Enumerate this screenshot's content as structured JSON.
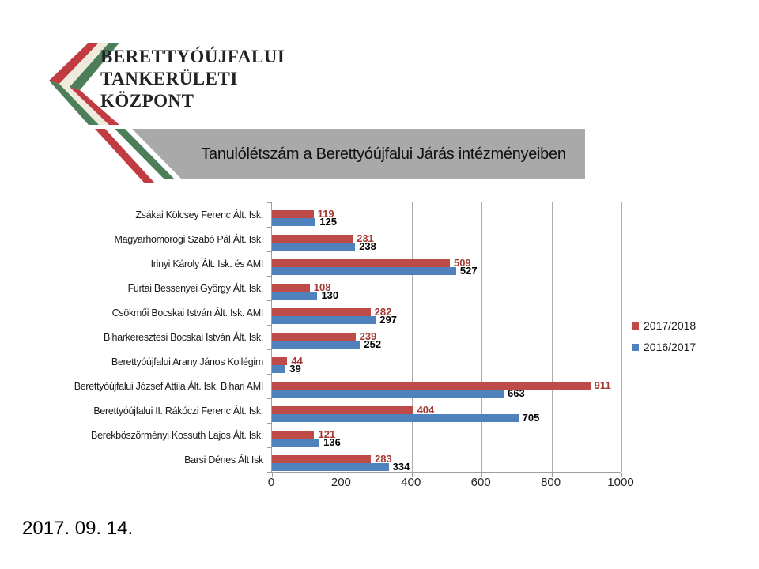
{
  "logo": {
    "line1": "BERETTYÓÚJFALUI",
    "line2": "TANKERÜLETI",
    "line3": "KÖZPONT"
  },
  "title": "Tanulólétszám a Berettyóújfalui Járás intézményeiben",
  "date": "2017. 09. 14.",
  "colors": {
    "banner_bg": "#a9a9a9",
    "flag_red": "#c13b42",
    "flag_cream": "#efebdc",
    "flag_green": "#4d7e5a",
    "series_red": "#be4b48",
    "series_blue": "#4f81bd",
    "red_value_label": "#a43832"
  },
  "chart_data": {
    "type": "bar",
    "orientation": "horizontal",
    "categories": [
      "Zsákai Kölcsey Ferenc Ált. Isk.",
      "Magyarhomorogi Szabó Pál Ált. Isk.",
      "Irinyi Károly Ált. Isk. és AMI",
      "Furtai Bessenyei György Ált. Isk.",
      "Csökmői Bocskai István Ált. Isk. AMI",
      "Biharkeresztesi Bocskai István Ált. Isk.",
      "Berettyóújfalui Arany János Kollégim",
      "Berettyóújfalui József Attila Ált. Isk. Bihari AMI",
      "Berettyóújfalui II. Rákóczi Ferenc Ált. Isk.",
      "Berekböszörményi Kossuth Lajos Ált. Isk.",
      "Barsi Dénes Ált Isk"
    ],
    "series": [
      {
        "name": "2017/2018",
        "color": "#be4b48",
        "label_color": "#a43832",
        "values": [
          119,
          231,
          509,
          108,
          282,
          239,
          44,
          911,
          404,
          121,
          283
        ]
      },
      {
        "name": "2016/2017",
        "color": "#4f81bd",
        "label_color": "#000000",
        "values": [
          125,
          238,
          527,
          130,
          297,
          252,
          39,
          663,
          705,
          136,
          334
        ]
      }
    ],
    "x_ticks": [
      0,
      200,
      400,
      600,
      800,
      1000
    ],
    "xlim": [
      0,
      1000
    ],
    "ylabel": "",
    "xlabel": "",
    "grid": "vertical",
    "legend_position": "right",
    "data_labels": true
  }
}
